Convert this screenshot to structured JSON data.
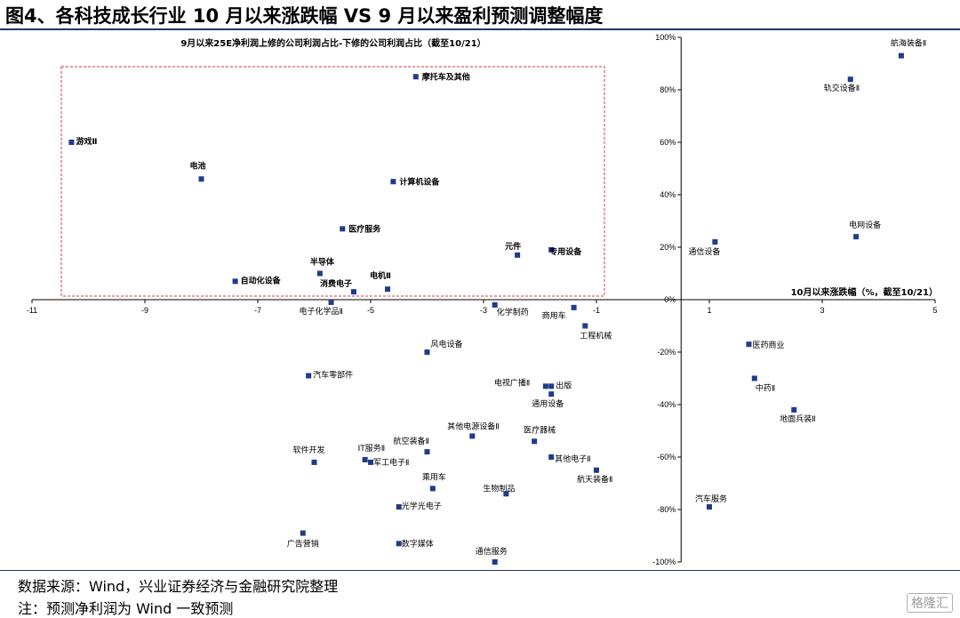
{
  "title": "图4、各科技成长行业 10 月以来涨跌幅  VS 9 月以来盈利预测调整幅度",
  "source_note": "数据来源：Wind，兴业证券经济与金融研究院整理",
  "footnote": "注：预测净利润为 Wind 一致预测",
  "watermark": "格隆汇",
  "chart_data": {
    "type": "scatter",
    "title": "9月以来25E净利润上修的公司利润占比-下修的公司利润占比（截至10/21）",
    "xlabel": "10月以来涨跌幅（%，截至10/21）",
    "xlim": [
      -11,
      5
    ],
    "ylim": [
      -1.0,
      1.0
    ],
    "xticks": [
      "-11",
      "-9",
      "-7",
      "-5",
      "-3",
      "-1",
      "1",
      "3",
      "5"
    ],
    "yticks": [
      "100%",
      "80%",
      "60%",
      "40%",
      "20%",
      "0%",
      "-20%",
      "-40%",
      "-60%",
      "-80%",
      "-100%"
    ],
    "marker_color": "#1f3b8a",
    "highlight_box_color": "#d9393b",
    "grid": false,
    "points": [
      {
        "name": "航海装备Ⅱ",
        "x": 4.4,
        "y": 0.93
      },
      {
        "name": "轨交设备Ⅱ",
        "x": 3.5,
        "y": 0.84
      },
      {
        "name": "电网设备",
        "x": 3.6,
        "y": 0.24
      },
      {
        "name": "通信设备",
        "x": 1.1,
        "y": 0.22
      },
      {
        "name": "摩托车及其他",
        "x": -4.2,
        "y": 0.85
      },
      {
        "name": "游戏Ⅱ",
        "x": -10.3,
        "y": 0.6
      },
      {
        "name": "电池",
        "x": -8.0,
        "y": 0.46
      },
      {
        "name": "计算机设备",
        "x": -4.6,
        "y": 0.45
      },
      {
        "name": "医疗服务",
        "x": -5.5,
        "y": 0.27
      },
      {
        "name": "元件",
        "x": -2.4,
        "y": 0.17
      },
      {
        "name": "专用设备",
        "x": -1.8,
        "y": 0.19
      },
      {
        "name": "自动化设备",
        "x": -7.4,
        "y": 0.07
      },
      {
        "name": "半导体",
        "x": -5.9,
        "y": 0.1
      },
      {
        "name": "消费电子",
        "x": -5.3,
        "y": 0.03
      },
      {
        "name": "电机Ⅱ",
        "x": -4.7,
        "y": 0.04
      },
      {
        "name": "电子化学品Ⅱ",
        "x": -5.7,
        "y": -0.01
      },
      {
        "name": "化学制药",
        "x": -2.8,
        "y": -0.02
      },
      {
        "name": "商用车",
        "x": -1.4,
        "y": -0.03
      },
      {
        "name": "工程机械",
        "x": -1.2,
        "y": -0.1
      },
      {
        "name": "风电设备",
        "x": -4.0,
        "y": -0.2
      },
      {
        "name": "医药商业",
        "x": 1.7,
        "y": -0.17
      },
      {
        "name": "汽车零部件",
        "x": -6.1,
        "y": -0.29
      },
      {
        "name": "中药Ⅱ",
        "x": 1.8,
        "y": -0.3
      },
      {
        "name": "电视广播Ⅱ",
        "x": -1.9,
        "y": -0.33
      },
      {
        "name": "出版",
        "x": -1.8,
        "y": -0.33
      },
      {
        "name": "通用设备",
        "x": -1.8,
        "y": -0.36
      },
      {
        "name": "地面兵装Ⅱ",
        "x": 2.5,
        "y": -0.42
      },
      {
        "name": "其他电源设备Ⅱ",
        "x": -3.2,
        "y": -0.52
      },
      {
        "name": "医疗器械",
        "x": -2.1,
        "y": -0.54
      },
      {
        "name": "航空装备Ⅱ",
        "x": -4.0,
        "y": -0.58
      },
      {
        "name": "软件开发",
        "x": -6.0,
        "y": -0.62
      },
      {
        "name": "IT服务Ⅱ",
        "x": -5.1,
        "y": -0.61
      },
      {
        "name": "军工电子Ⅱ",
        "x": -5.0,
        "y": -0.62
      },
      {
        "name": "其他电子Ⅱ",
        "x": -1.8,
        "y": -0.6
      },
      {
        "name": "航天装备Ⅱ",
        "x": -1.0,
        "y": -0.65
      },
      {
        "name": "乘用车",
        "x": -3.9,
        "y": -0.72
      },
      {
        "name": "生物制品",
        "x": -2.6,
        "y": -0.74
      },
      {
        "name": "光学光电子",
        "x": -4.5,
        "y": -0.79
      },
      {
        "name": "汽车服务",
        "x": 1.0,
        "y": -0.79
      },
      {
        "name": "广告营销",
        "x": -6.2,
        "y": -0.89
      },
      {
        "name": "数字媒体",
        "x": -4.5,
        "y": -0.93
      },
      {
        "name": "通信服务",
        "x": -2.8,
        "y": -1.0
      }
    ]
  }
}
